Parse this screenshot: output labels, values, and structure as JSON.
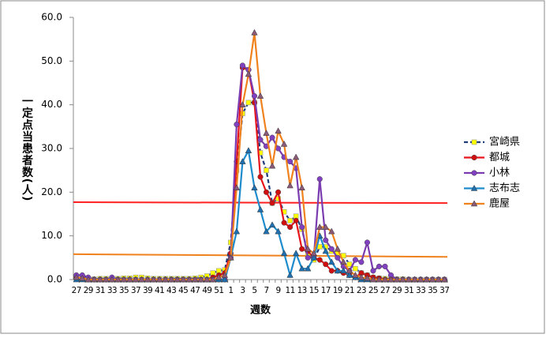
{
  "chart_data": {
    "type": "line",
    "y_label": "一定点当患者数(人)",
    "x_label": "週数",
    "categories": [
      "27",
      null,
      "29",
      null,
      "31",
      null,
      "33",
      null,
      "35",
      null,
      "37",
      null,
      "39",
      null,
      "41",
      null,
      "43",
      null,
      "45",
      null,
      "47",
      null,
      "49",
      null,
      "51",
      null,
      "1",
      null,
      "3",
      null,
      "5",
      null,
      "7",
      null,
      "9",
      null,
      "11",
      null,
      "13",
      null,
      "15",
      null,
      "17",
      null,
      "19",
      null,
      "21",
      null,
      "23",
      null,
      "25",
      null,
      "27",
      null,
      "29",
      null,
      "31",
      null,
      "33",
      null,
      "35",
      null,
      "37"
    ],
    "ylim": [
      0,
      60
    ],
    "yticks": [
      {
        "value": 0,
        "label": "0.0"
      },
      {
        "value": 10,
        "label": "10.0"
      },
      {
        "value": 20,
        "label": "20.0"
      },
      {
        "value": 30,
        "label": "30.0"
      },
      {
        "value": 40,
        "label": "40.0"
      },
      {
        "value": 50,
        "label": "50.0"
      },
      {
        "value": 60,
        "label": "60.0"
      }
    ],
    "series": [
      {
        "name": "宮崎県",
        "color": "#1f3b7a",
        "line_style": "dashed",
        "marker": "square",
        "marker_color": "#ffff00",
        "values": [
          0.5,
          0.3,
          0.2,
          0.1,
          0.2,
          0.2,
          0.2,
          0.2,
          0.3,
          0.3,
          0.5,
          0.5,
          0.3,
          0.2,
          0.2,
          0.2,
          0.2,
          0.2,
          0.2,
          0.2,
          0.3,
          0.5,
          0.8,
          1.5,
          2,
          2.2,
          8.5,
          25,
          38,
          40.5,
          40.5,
          29,
          25,
          17.5,
          18.5,
          15.5,
          13.5,
          14.5,
          11.5,
          6,
          4.5,
          7.5,
          7.5,
          6.5,
          6,
          5.5,
          3.5,
          2.5,
          1.5,
          1,
          0.5,
          0.3,
          0.2,
          0.2,
          0.1,
          0.1,
          0,
          0,
          0,
          0,
          0,
          0,
          0
        ]
      },
      {
        "name": "都城",
        "color": "#e8141c",
        "line_style": "solid",
        "marker": "circle",
        "marker_color": "#d01010",
        "values": [
          0.5,
          0.3,
          0,
          0,
          0,
          0,
          0,
          0,
          0,
          0,
          0,
          0,
          0,
          0,
          0,
          0,
          0,
          0,
          0,
          0,
          0,
          0,
          0,
          0.5,
          1,
          1.5,
          6,
          27,
          48.5,
          48,
          40.5,
          23.5,
          20,
          17.5,
          20,
          13,
          12,
          13.5,
          7,
          6.5,
          5,
          4.5,
          3.5,
          2,
          2,
          1.5,
          1,
          0.5,
          1.5,
          1,
          0.5,
          0.3,
          0,
          0,
          0,
          0,
          0,
          0,
          0,
          0,
          0,
          0,
          0
        ]
      },
      {
        "name": "小林",
        "color": "#7a3cb0",
        "line_style": "solid",
        "marker": "circle",
        "marker_color": "#8040c0",
        "values": [
          1,
          1,
          0.5,
          0,
          0,
          0,
          0.5,
          0,
          0,
          0,
          0,
          0,
          0,
          0,
          0,
          0,
          0,
          0,
          0,
          0,
          0,
          0,
          0,
          0,
          0,
          0,
          5,
          35.5,
          49,
          48,
          42,
          32,
          30.5,
          32.5,
          30,
          28,
          27,
          25.5,
          12,
          5,
          5,
          23,
          9,
          7,
          5,
          3,
          2,
          4.5,
          4,
          8.5,
          2,
          3,
          3,
          1,
          0,
          0,
          0,
          0,
          0,
          0,
          0,
          0,
          0
        ]
      },
      {
        "name": "志布志",
        "color": "#1e8ccc",
        "line_style": "solid",
        "marker": "triangle",
        "marker_color": "#1f70b0",
        "values": [
          0,
          0,
          0,
          0,
          0,
          0,
          0,
          0,
          0,
          0,
          0,
          0,
          0,
          0,
          0,
          0,
          0,
          0,
          0,
          0,
          0,
          0,
          0,
          0,
          0,
          0,
          5,
          11,
          27,
          29.5,
          21,
          16,
          11,
          12.5,
          11,
          6,
          1,
          6,
          2.5,
          2.5,
          5,
          10,
          6.5,
          4,
          2,
          2,
          1,
          0.5,
          0,
          0,
          0,
          0,
          0,
          0,
          0,
          0,
          0,
          0,
          0,
          0,
          0,
          0,
          0
        ]
      },
      {
        "name": "鹿屋",
        "color": "#f0821e",
        "line_style": "solid",
        "marker": "triangle",
        "marker_color": "#8a5a78",
        "values": [
          0.5,
          0.3,
          0,
          0,
          0,
          0,
          0,
          0,
          0,
          0,
          0,
          0,
          0,
          0,
          0,
          0,
          0,
          0,
          0,
          0,
          0,
          0,
          0,
          0,
          0.5,
          1,
          5,
          21,
          40,
          47,
          56.5,
          42,
          33.5,
          26,
          34,
          31,
          21.5,
          28,
          21,
          7,
          6,
          12,
          12,
          11,
          7,
          4,
          2,
          1,
          0.5,
          0.3,
          0,
          0,
          0,
          0,
          0,
          0,
          0,
          0,
          0,
          0,
          0,
          0,
          0
        ]
      }
    ],
    "reference_lines": [
      {
        "color": "#ff2020",
        "values": [
          17.7,
          17.5
        ]
      },
      {
        "color": "#f0821e",
        "values": [
          5.8,
          5.2
        ]
      }
    ]
  }
}
